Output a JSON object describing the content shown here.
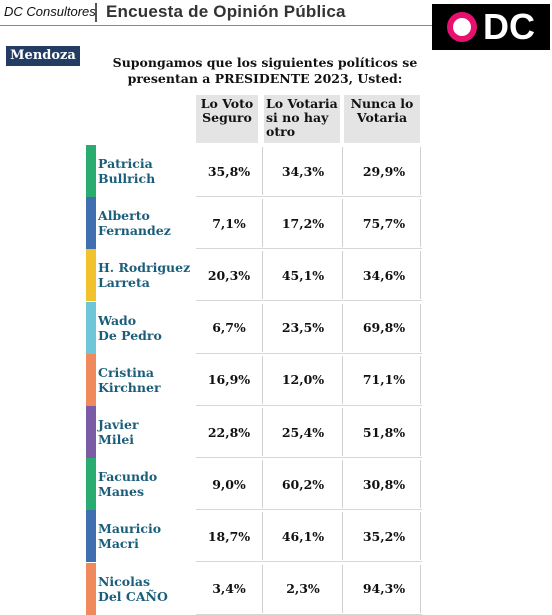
{
  "header": {
    "brand": "DC Consultores",
    "title": "Encuesta de Opinión Pública",
    "logo_text": "DC"
  },
  "region": "Mendoza",
  "question": {
    "line1": "Supongamos que los siguientes políticos se",
    "line2": "presentan a PRESIDENTE 2023, Usted:"
  },
  "colors": {
    "logo_ring": "#e8106f",
    "region_bg": "#233c63",
    "name_text": "#1b5e7a"
  },
  "chart_data": {
    "type": "table",
    "columns": [
      "Lo Voto Seguro",
      "Lo Votaria si no hay otro",
      "Nunca lo Votaria"
    ],
    "column_header_lines": [
      [
        "Lo Voto",
        "Seguro"
      ],
      [
        "Lo Votaria",
        "si no hay",
        "otro"
      ],
      [
        "Nunca lo",
        "Votaria"
      ]
    ],
    "rows": [
      {
        "name1": "Patricia",
        "name2": "Bullrich",
        "color": "#2aab6f",
        "values": [
          "35,8%",
          "34,3%",
          "29,9%"
        ]
      },
      {
        "name1": "Alberto",
        "name2": "Fernandez",
        "color": "#3f6fb0",
        "values": [
          "7,1%",
          "17,2%",
          "75,7%"
        ]
      },
      {
        "name1": "H. Rodriguez",
        "name2": "Larreta",
        "color": "#f2c12e",
        "values": [
          "20,3%",
          "45,1%",
          "34,6%"
        ]
      },
      {
        "name1": "Wado",
        "name2": "De Pedro",
        "color": "#6ec6d8",
        "values": [
          "6,7%",
          "23,5%",
          "69,8%"
        ]
      },
      {
        "name1": "Cristina",
        "name2": "Kirchner",
        "color": "#f08a5d",
        "values": [
          "16,9%",
          "12,0%",
          "71,1%"
        ]
      },
      {
        "name1": "Javier",
        "name2": "Milei",
        "color": "#7b5aa6",
        "values": [
          "22,8%",
          "25,4%",
          "51,8%"
        ]
      },
      {
        "name1": "Facundo",
        "name2": "Manes",
        "color": "#2aab6f",
        "values": [
          "9,0%",
          "60,2%",
          "30,8%"
        ]
      },
      {
        "name1": "Mauricio",
        "name2": "Macri",
        "color": "#3f6fb0",
        "values": [
          "18,7%",
          "46,1%",
          "35,2%"
        ]
      },
      {
        "name1": "Nicolas",
        "name2": "Del CAÑO",
        "color": "#f08a5d",
        "values": [
          "3,4%",
          "2,3%",
          "94,3%"
        ]
      }
    ]
  }
}
